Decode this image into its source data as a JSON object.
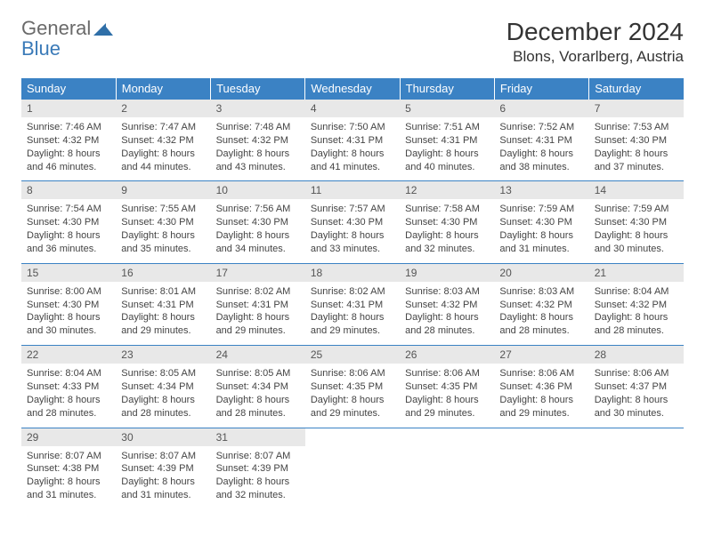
{
  "logo": {
    "line1": "General",
    "line2": "Blue"
  },
  "title": "December 2024",
  "location": "Blons, Vorarlberg, Austria",
  "colors": {
    "header_bg": "#3b82c4",
    "header_text": "#ffffff",
    "daynum_bg": "#e8e8e8",
    "border": "#3b82c4",
    "logo_gray": "#6a6a6a",
    "logo_blue": "#3a7ab8"
  },
  "weekdays": [
    "Sunday",
    "Monday",
    "Tuesday",
    "Wednesday",
    "Thursday",
    "Friday",
    "Saturday"
  ],
  "weeks": [
    [
      {
        "n": "1",
        "sr": "7:46 AM",
        "ss": "4:32 PM",
        "dl": "8 hours and 46 minutes."
      },
      {
        "n": "2",
        "sr": "7:47 AM",
        "ss": "4:32 PM",
        "dl": "8 hours and 44 minutes."
      },
      {
        "n": "3",
        "sr": "7:48 AM",
        "ss": "4:32 PM",
        "dl": "8 hours and 43 minutes."
      },
      {
        "n": "4",
        "sr": "7:50 AM",
        "ss": "4:31 PM",
        "dl": "8 hours and 41 minutes."
      },
      {
        "n": "5",
        "sr": "7:51 AM",
        "ss": "4:31 PM",
        "dl": "8 hours and 40 minutes."
      },
      {
        "n": "6",
        "sr": "7:52 AM",
        "ss": "4:31 PM",
        "dl": "8 hours and 38 minutes."
      },
      {
        "n": "7",
        "sr": "7:53 AM",
        "ss": "4:30 PM",
        "dl": "8 hours and 37 minutes."
      }
    ],
    [
      {
        "n": "8",
        "sr": "7:54 AM",
        "ss": "4:30 PM",
        "dl": "8 hours and 36 minutes."
      },
      {
        "n": "9",
        "sr": "7:55 AM",
        "ss": "4:30 PM",
        "dl": "8 hours and 35 minutes."
      },
      {
        "n": "10",
        "sr": "7:56 AM",
        "ss": "4:30 PM",
        "dl": "8 hours and 34 minutes."
      },
      {
        "n": "11",
        "sr": "7:57 AM",
        "ss": "4:30 PM",
        "dl": "8 hours and 33 minutes."
      },
      {
        "n": "12",
        "sr": "7:58 AM",
        "ss": "4:30 PM",
        "dl": "8 hours and 32 minutes."
      },
      {
        "n": "13",
        "sr": "7:59 AM",
        "ss": "4:30 PM",
        "dl": "8 hours and 31 minutes."
      },
      {
        "n": "14",
        "sr": "7:59 AM",
        "ss": "4:30 PM",
        "dl": "8 hours and 30 minutes."
      }
    ],
    [
      {
        "n": "15",
        "sr": "8:00 AM",
        "ss": "4:30 PM",
        "dl": "8 hours and 30 minutes."
      },
      {
        "n": "16",
        "sr": "8:01 AM",
        "ss": "4:31 PM",
        "dl": "8 hours and 29 minutes."
      },
      {
        "n": "17",
        "sr": "8:02 AM",
        "ss": "4:31 PM",
        "dl": "8 hours and 29 minutes."
      },
      {
        "n": "18",
        "sr": "8:02 AM",
        "ss": "4:31 PM",
        "dl": "8 hours and 29 minutes."
      },
      {
        "n": "19",
        "sr": "8:03 AM",
        "ss": "4:32 PM",
        "dl": "8 hours and 28 minutes."
      },
      {
        "n": "20",
        "sr": "8:03 AM",
        "ss": "4:32 PM",
        "dl": "8 hours and 28 minutes."
      },
      {
        "n": "21",
        "sr": "8:04 AM",
        "ss": "4:32 PM",
        "dl": "8 hours and 28 minutes."
      }
    ],
    [
      {
        "n": "22",
        "sr": "8:04 AM",
        "ss": "4:33 PM",
        "dl": "8 hours and 28 minutes."
      },
      {
        "n": "23",
        "sr": "8:05 AM",
        "ss": "4:34 PM",
        "dl": "8 hours and 28 minutes."
      },
      {
        "n": "24",
        "sr": "8:05 AM",
        "ss": "4:34 PM",
        "dl": "8 hours and 28 minutes."
      },
      {
        "n": "25",
        "sr": "8:06 AM",
        "ss": "4:35 PM",
        "dl": "8 hours and 29 minutes."
      },
      {
        "n": "26",
        "sr": "8:06 AM",
        "ss": "4:35 PM",
        "dl": "8 hours and 29 minutes."
      },
      {
        "n": "27",
        "sr": "8:06 AM",
        "ss": "4:36 PM",
        "dl": "8 hours and 29 minutes."
      },
      {
        "n": "28",
        "sr": "8:06 AM",
        "ss": "4:37 PM",
        "dl": "8 hours and 30 minutes."
      }
    ],
    [
      {
        "n": "29",
        "sr": "8:07 AM",
        "ss": "4:38 PM",
        "dl": "8 hours and 31 minutes."
      },
      {
        "n": "30",
        "sr": "8:07 AM",
        "ss": "4:39 PM",
        "dl": "8 hours and 31 minutes."
      },
      {
        "n": "31",
        "sr": "8:07 AM",
        "ss": "4:39 PM",
        "dl": "8 hours and 32 minutes."
      },
      null,
      null,
      null,
      null
    ]
  ],
  "labels": {
    "sunrise": "Sunrise: ",
    "sunset": "Sunset: ",
    "daylight": "Daylight: "
  }
}
